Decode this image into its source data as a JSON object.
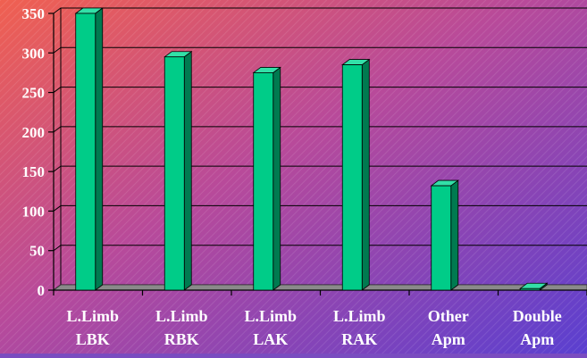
{
  "chart_data": {
    "type": "bar",
    "style": "3d-column",
    "categories": [
      [
        "L.Limb",
        "LBK"
      ],
      [
        "L.Limb",
        "RBK"
      ],
      [
        "L.Limb",
        "LAK"
      ],
      [
        "L.Limb",
        "RAK"
      ],
      [
        "Other",
        "Apm"
      ],
      [
        "Double",
        "Apm"
      ]
    ],
    "values": [
      350,
      295,
      275,
      285,
      132,
      2
    ],
    "ylim": [
      0,
      350
    ],
    "yticks": [
      0,
      50,
      100,
      150,
      200,
      250,
      300,
      350
    ],
    "grid": true,
    "legend": "none",
    "colors": {
      "bar_front": "#00cc88",
      "bar_side": "#007a50",
      "bar_top": "#33e0a8",
      "floor": "#8a8a8a",
      "gridline": "#000000",
      "background_from": "#f06050",
      "background_mid": "#b84a9a",
      "background_to": "#5a3fd0"
    }
  }
}
